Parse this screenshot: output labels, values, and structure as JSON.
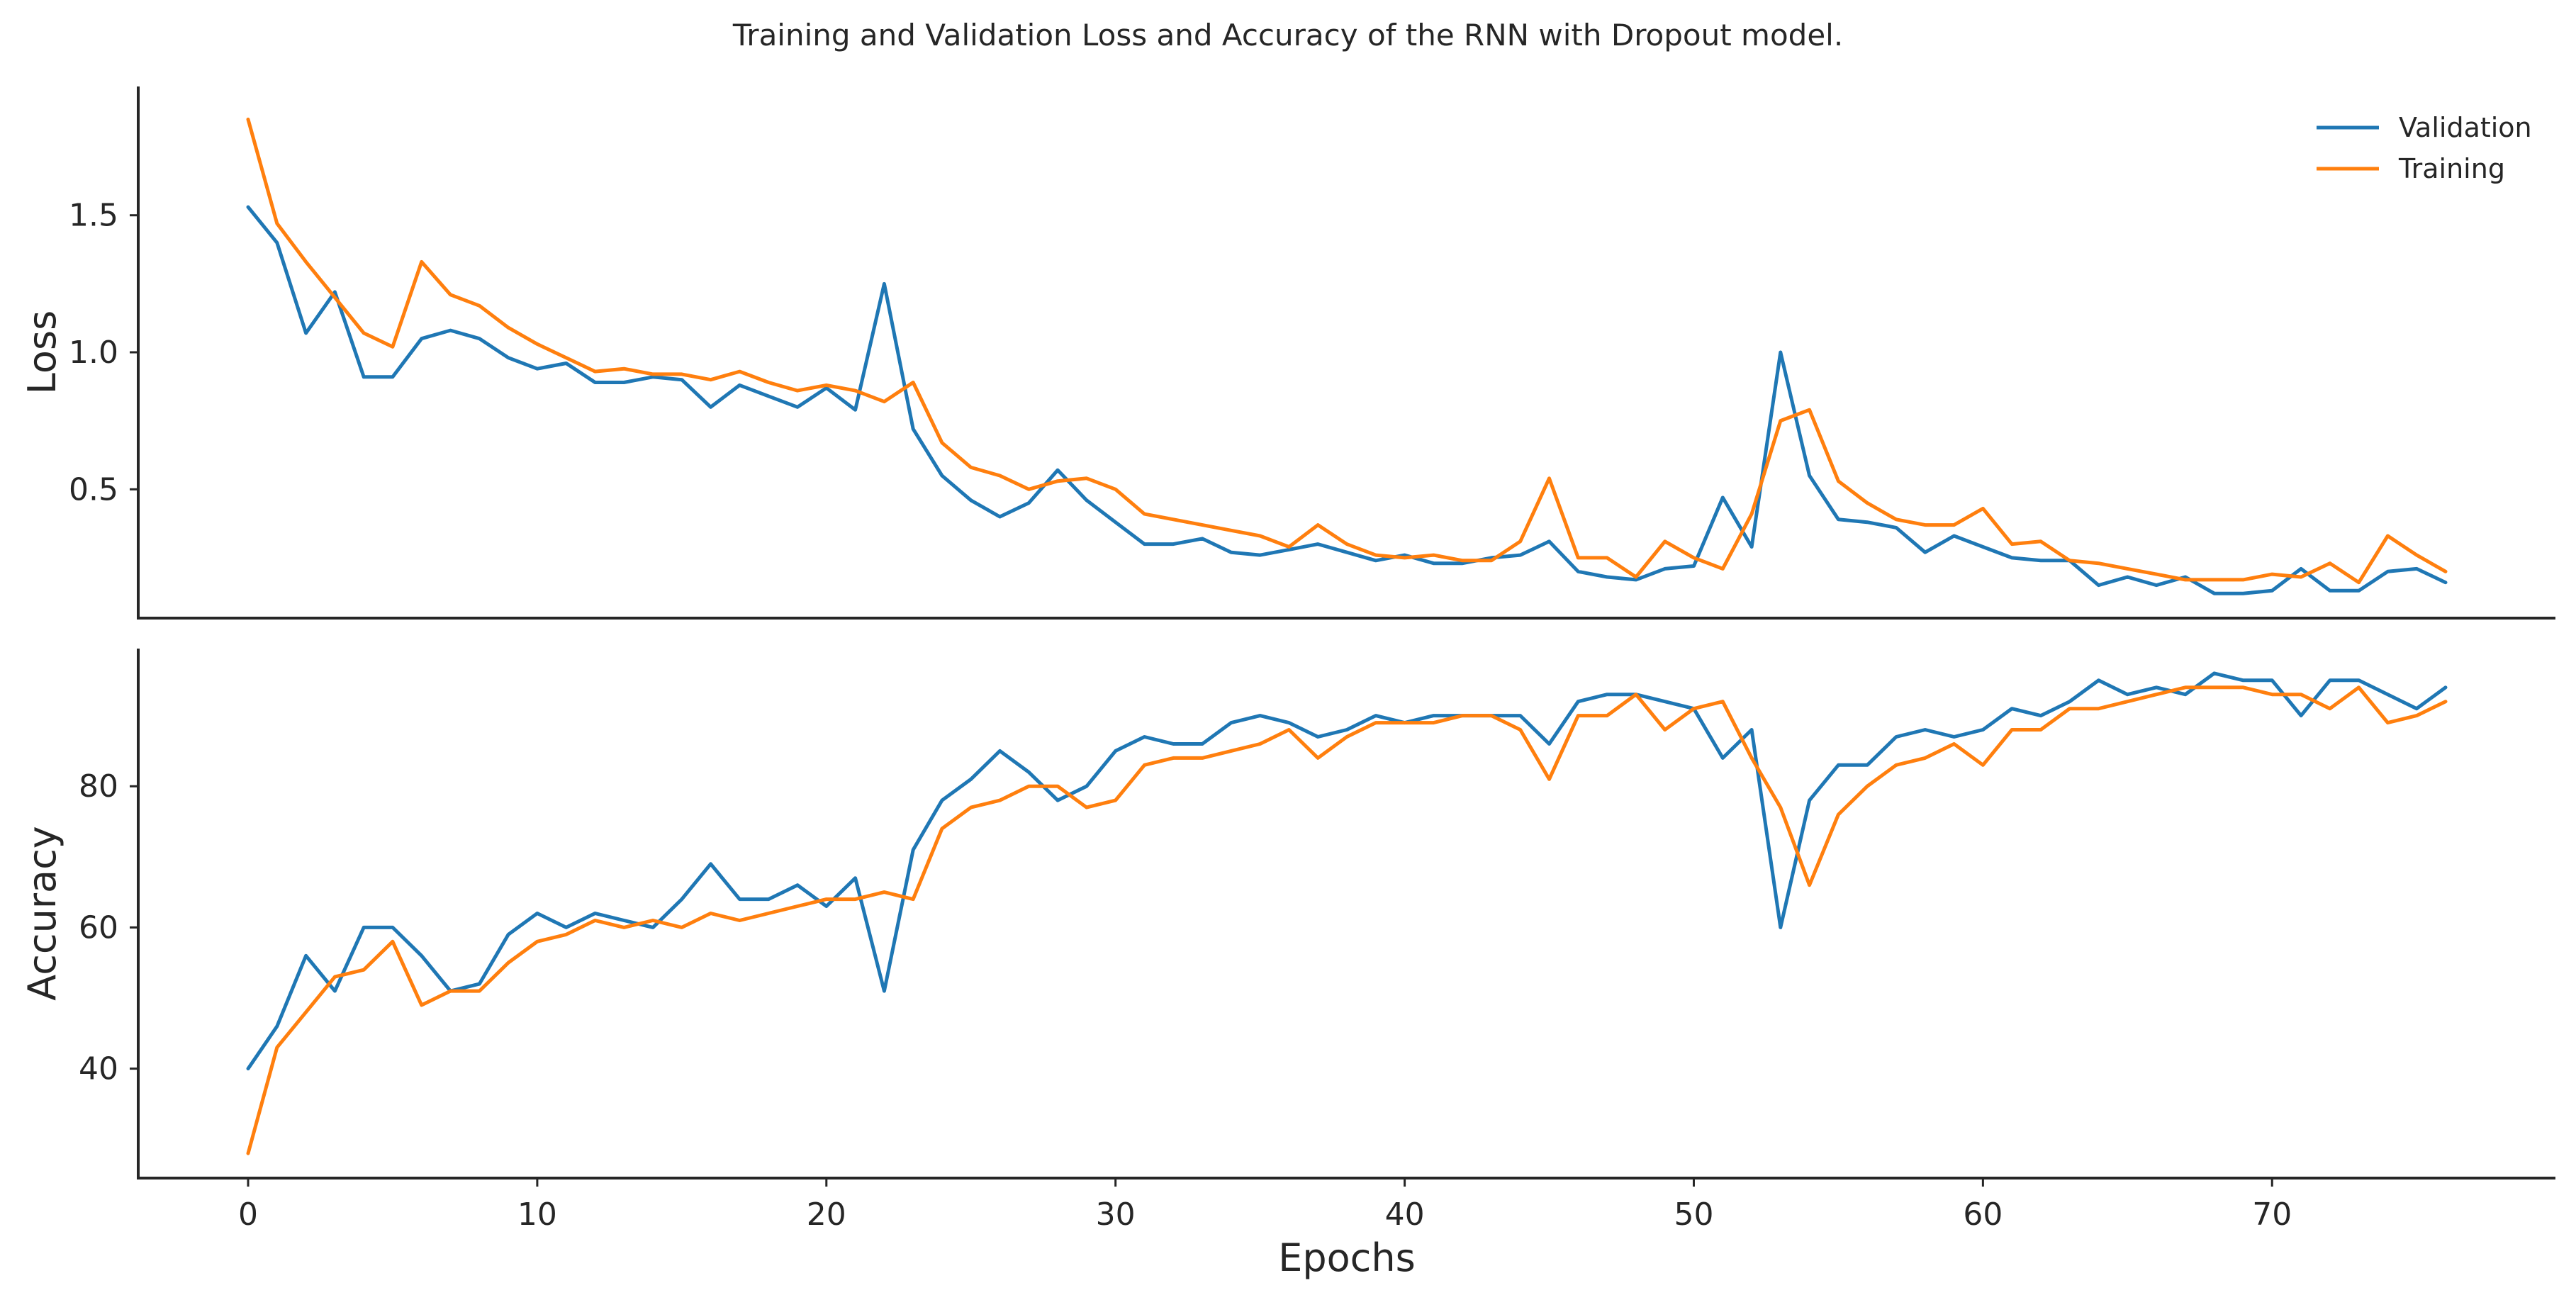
{
  "chart_data": {
    "type": "line",
    "title": "Training and Validation Loss and Accuracy of the RNN with Dropout model.",
    "xlabel": "Epochs",
    "x_ticks": [
      0,
      10,
      20,
      30,
      40,
      50,
      60,
      70
    ],
    "xlim": [
      -3.8,
      79.8
    ],
    "legend_position": "top-right",
    "grid": false,
    "colors": {
      "Validation": "#1f77b4",
      "Training": "#ff7f0e"
    },
    "x": [
      0,
      1,
      2,
      3,
      4,
      5,
      6,
      7,
      8,
      9,
      10,
      11,
      12,
      13,
      14,
      15,
      16,
      17,
      18,
      19,
      20,
      21,
      22,
      23,
      24,
      25,
      26,
      27,
      28,
      29,
      30,
      31,
      32,
      33,
      34,
      35,
      36,
      37,
      38,
      39,
      40,
      41,
      42,
      43,
      44,
      45,
      46,
      47,
      48,
      49,
      50,
      51,
      52,
      53,
      54,
      55,
      56,
      57,
      58,
      59,
      60,
      61,
      62,
      63,
      64,
      65,
      66,
      67,
      68,
      69,
      70,
      71,
      72,
      73,
      74,
      75,
      76
    ],
    "panels": [
      {
        "name": "loss",
        "ylabel": "Loss",
        "ylim": [
          0.03,
          1.97
        ],
        "y_ticks": [
          0.5,
          1.0,
          1.5
        ],
        "y_tick_labels": [
          "0.5",
          "1.0",
          "1.5"
        ],
        "show_legend": true,
        "series": [
          {
            "name": "Validation",
            "values": [
              1.53,
              1.4,
              1.07,
              1.22,
              0.91,
              0.91,
              1.05,
              1.08,
              1.05,
              0.98,
              0.94,
              0.96,
              0.89,
              0.89,
              0.91,
              0.9,
              0.8,
              0.88,
              0.84,
              0.8,
              0.87,
              0.79,
              1.25,
              0.72,
              0.55,
              0.46,
              0.4,
              0.45,
              0.57,
              0.46,
              0.38,
              0.3,
              0.3,
              0.32,
              0.27,
              0.26,
              0.28,
              0.3,
              0.27,
              0.24,
              0.26,
              0.23,
              0.23,
              0.25,
              0.26,
              0.31,
              0.2,
              0.18,
              0.17,
              0.21,
              0.22,
              0.47,
              0.29,
              1.0,
              0.55,
              0.39,
              0.38,
              0.36,
              0.27,
              0.33,
              0.29,
              0.25,
              0.24,
              0.24,
              0.15,
              0.18,
              0.15,
              0.18,
              0.12,
              0.12,
              0.13,
              0.21,
              0.13,
              0.13,
              0.2,
              0.21,
              0.16
            ]
          },
          {
            "name": "Training",
            "values": [
              1.85,
              1.47,
              1.33,
              1.2,
              1.07,
              1.02,
              1.33,
              1.21,
              1.17,
              1.09,
              1.03,
              0.98,
              0.93,
              0.94,
              0.92,
              0.92,
              0.9,
              0.93,
              0.89,
              0.86,
              0.88,
              0.86,
              0.82,
              0.89,
              0.67,
              0.58,
              0.55,
              0.5,
              0.53,
              0.54,
              0.5,
              0.41,
              0.39,
              0.37,
              0.35,
              0.33,
              0.29,
              0.37,
              0.3,
              0.26,
              0.25,
              0.26,
              0.24,
              0.24,
              0.31,
              0.54,
              0.25,
              0.25,
              0.18,
              0.31,
              0.25,
              0.21,
              0.41,
              0.75,
              0.79,
              0.53,
              0.45,
              0.39,
              0.37,
              0.37,
              0.43,
              0.3,
              0.31,
              0.24,
              0.23,
              0.21,
              0.19,
              0.17,
              0.17,
              0.17,
              0.19,
              0.18,
              0.23,
              0.16,
              0.33,
              0.26,
              0.2
            ]
          }
        ]
      },
      {
        "name": "accuracy",
        "ylabel": "Accuracy",
        "ylim": [
          24.5,
          99.5
        ],
        "y_ticks": [
          40,
          60,
          80
        ],
        "y_tick_labels": [
          "40",
          "60",
          "80"
        ],
        "show_legend": false,
        "series": [
          {
            "name": "Validation",
            "values": [
              40,
              46,
              56,
              51,
              60,
              60,
              56,
              51,
              52,
              59,
              62,
              60,
              62,
              61,
              60,
              64,
              69,
              64,
              64,
              66,
              63,
              67,
              51,
              71,
              78,
              81,
              85,
              82,
              78,
              80,
              85,
              87,
              86,
              86,
              89,
              90,
              89,
              87,
              88,
              90,
              89,
              90,
              90,
              90,
              90,
              86,
              92,
              93,
              93,
              92,
              91,
              84,
              88,
              60,
              78,
              83,
              83,
              87,
              88,
              87,
              88,
              91,
              90,
              92,
              95,
              93,
              94,
              93,
              96,
              95,
              95,
              90,
              95,
              95,
              93,
              91,
              94
            ]
          },
          {
            "name": "Training",
            "values": [
              28,
              43,
              48,
              53,
              54,
              58,
              49,
              51,
              51,
              55,
              58,
              59,
              61,
              60,
              61,
              60,
              62,
              61,
              62,
              63,
              64,
              64,
              65,
              64,
              74,
              77,
              78,
              80,
              80,
              77,
              78,
              83,
              84,
              84,
              85,
              86,
              88,
              84,
              87,
              89,
              89,
              89,
              90,
              90,
              88,
              81,
              90,
              90,
              93,
              88,
              91,
              92,
              84,
              77,
              66,
              76,
              80,
              83,
              84,
              86,
              83,
              88,
              88,
              91,
              91,
              92,
              93,
              94,
              94,
              94,
              93,
              93,
              91,
              94,
              89,
              90,
              92
            ]
          }
        ]
      }
    ]
  }
}
